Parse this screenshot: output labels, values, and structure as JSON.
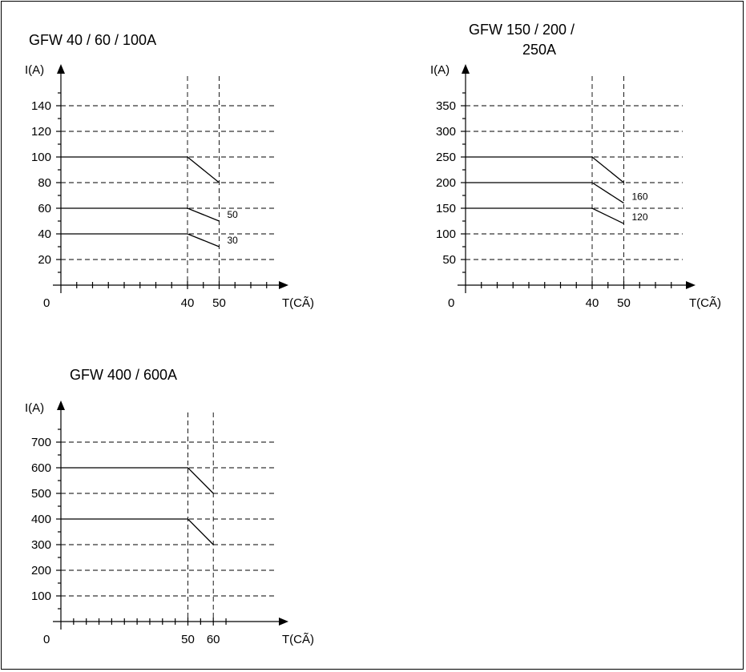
{
  "chart_data": [
    {
      "type": "line",
      "title_lines": [
        "GFW  40 / 60 / 100A"
      ],
      "ylabel": "I(A)",
      "xlabel": "T(CÃ)",
      "origin_label": "0",
      "ylim": [
        0,
        160
      ],
      "xlim": [
        0,
        70
      ],
      "y_ticks": [
        20,
        40,
        60,
        80,
        100,
        120,
        140
      ],
      "y_minor_ticks": [
        10,
        30,
        50,
        70,
        90,
        110,
        130,
        150
      ],
      "x_ticks": [
        40,
        50
      ],
      "x_minor_ticks": [
        5,
        10,
        15,
        20,
        25,
        30,
        35,
        45,
        55,
        60,
        65
      ],
      "vlines": [
        40,
        50
      ],
      "series": [
        {
          "x": [
            0,
            40,
            50
          ],
          "y": [
            100,
            100,
            80
          ]
        },
        {
          "x": [
            0,
            40,
            50
          ],
          "y": [
            60,
            60,
            50
          ],
          "end_label": "50"
        },
        {
          "x": [
            0,
            40,
            50
          ],
          "y": [
            40,
            40,
            30
          ],
          "end_label": "30"
        }
      ]
    },
    {
      "type": "line",
      "title_lines": [
        "GFW  150 / 200 /",
        "250A"
      ],
      "ylabel": "I(A)",
      "xlabel": "T(CÃ)",
      "origin_label": "0",
      "ylim": [
        0,
        400
      ],
      "xlim": [
        0,
        70
      ],
      "y_ticks": [
        50,
        100,
        150,
        200,
        250,
        300,
        350
      ],
      "y_minor_ticks": [
        25,
        75,
        125,
        175,
        225,
        275,
        325,
        375
      ],
      "x_ticks": [
        40,
        50
      ],
      "x_minor_ticks": [
        5,
        10,
        15,
        20,
        25,
        30,
        35,
        45,
        55,
        60,
        65
      ],
      "vlines": [
        40,
        50
      ],
      "series": [
        {
          "x": [
            0,
            40,
            50
          ],
          "y": [
            250,
            250,
            200
          ]
        },
        {
          "x": [
            0,
            40,
            50
          ],
          "y": [
            200,
            200,
            160
          ],
          "end_label": "160"
        },
        {
          "x": [
            0,
            40,
            50
          ],
          "y": [
            150,
            150,
            120
          ],
          "end_label": "120"
        }
      ]
    },
    {
      "type": "line",
      "title_lines": [
        "GFW  400 / 600A"
      ],
      "ylabel": "I(A)",
      "xlabel": "T(CÃ)",
      "origin_label": "0",
      "ylim": [
        0,
        800
      ],
      "xlim": [
        0,
        70
      ],
      "y_ticks": [
        100,
        200,
        300,
        400,
        500,
        600,
        700
      ],
      "y_minor_ticks": [
        50,
        150,
        250,
        350,
        450,
        550,
        650,
        750
      ],
      "x_ticks": [
        50,
        60
      ],
      "x_minor_ticks": [
        5,
        10,
        15,
        20,
        25,
        30,
        35,
        40,
        45,
        55,
        65
      ],
      "vlines": [
        50,
        60
      ],
      "series": [
        {
          "x": [
            0,
            50,
            60
          ],
          "y": [
            600,
            600,
            500
          ]
        },
        {
          "x": [
            0,
            50,
            60
          ],
          "y": [
            400,
            400,
            300
          ]
        }
      ]
    }
  ]
}
